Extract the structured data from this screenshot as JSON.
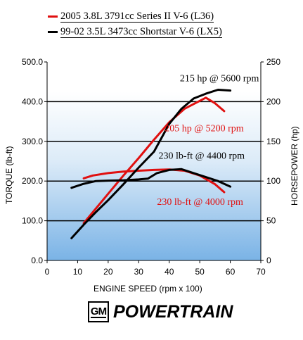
{
  "legend": [
    {
      "label": "2005 3.8L 3791cc Series II V-6 (L36)",
      "color": "#e01010"
    },
    {
      "label": "99-02 3.5L 3473cc Shortstar V-6 (LX5)",
      "color": "#000000"
    }
  ],
  "logo": {
    "badge": "GM",
    "brand": "POWERTRAIN"
  },
  "chart_data": {
    "type": "line",
    "xlabel": "ENGINE SPEED (rpm x 100)",
    "ylabel_left": "TORQUE (lb-ft)",
    "ylabel_right": "HORSEPOWER (hp)",
    "xlim": [
      0,
      70
    ],
    "xticks": [
      "0",
      "10",
      "20",
      "30",
      "40",
      "50",
      "60",
      "70"
    ],
    "ylim_left": [
      0,
      500
    ],
    "yticks_left": [
      "0.0",
      "100.0",
      "200.0",
      "300.0",
      "400.0",
      "500.0"
    ],
    "ylim_right": [
      0,
      250
    ],
    "yticks_right": [
      "0",
      "50",
      "100",
      "150",
      "200",
      "250"
    ],
    "grid": "horizontal",
    "series": [
      {
        "name": "2005 3.8L 3791cc Series II V-6 (L36)",
        "metric": "torque",
        "color": "#e01010",
        "x": [
          12,
          15,
          20,
          25,
          30,
          35,
          40,
          45,
          50,
          55,
          58
        ],
        "y": [
          207,
          214,
          220,
          224,
          226,
          228,
          229,
          226,
          214,
          192,
          172
        ]
      },
      {
        "name": "2005 3.8L 3791cc Series II V-6 (L36)",
        "metric": "horsepower",
        "color": "#e01010",
        "x": [
          12,
          20,
          25,
          30,
          35,
          40,
          45,
          50,
          52,
          55,
          58
        ],
        "y": [
          47,
          84,
          107,
          129,
          152,
          174,
          191,
          201,
          205,
          198,
          188
        ]
      },
      {
        "name": "99-02 3.5L 3473cc Shortstar V-6 (LX5)",
        "metric": "torque",
        "color": "#000000",
        "x": [
          8,
          12,
          16,
          20,
          25,
          30,
          33,
          36,
          40,
          44,
          48,
          52,
          56,
          60
        ],
        "y": [
          183,
          193,
          200,
          201,
          202,
          204,
          206,
          220,
          228,
          230,
          220,
          210,
          200,
          186
        ]
      },
      {
        "name": "99-02 3.5L 3473cc Shortstar V-6 (LX5)",
        "metric": "horsepower",
        "color": "#000000",
        "x": [
          8,
          12,
          16,
          20,
          25,
          30,
          35,
          40,
          44,
          48,
          52,
          56,
          60
        ],
        "y": [
          28,
          45,
          61,
          76,
          96,
          117,
          137,
          172,
          191,
          204,
          210,
          215,
          214
        ]
      }
    ],
    "annotations": [
      {
        "text": "215 hp @ 5600 rpm",
        "color": "#000000",
        "x": 43.5,
        "y_left": 451
      },
      {
        "text": "205 hp @ 5200 rpm",
        "color": "#e01010",
        "x": 38.5,
        "y_left": 325
      },
      {
        "text": "230 lb-ft @ 4400 rpm",
        "color": "#000000",
        "x": 36.5,
        "y_left": 256
      },
      {
        "text": "230 lb-ft @ 4000 rpm",
        "color": "#e01010",
        "x": 36,
        "y_left": 140
      }
    ]
  }
}
